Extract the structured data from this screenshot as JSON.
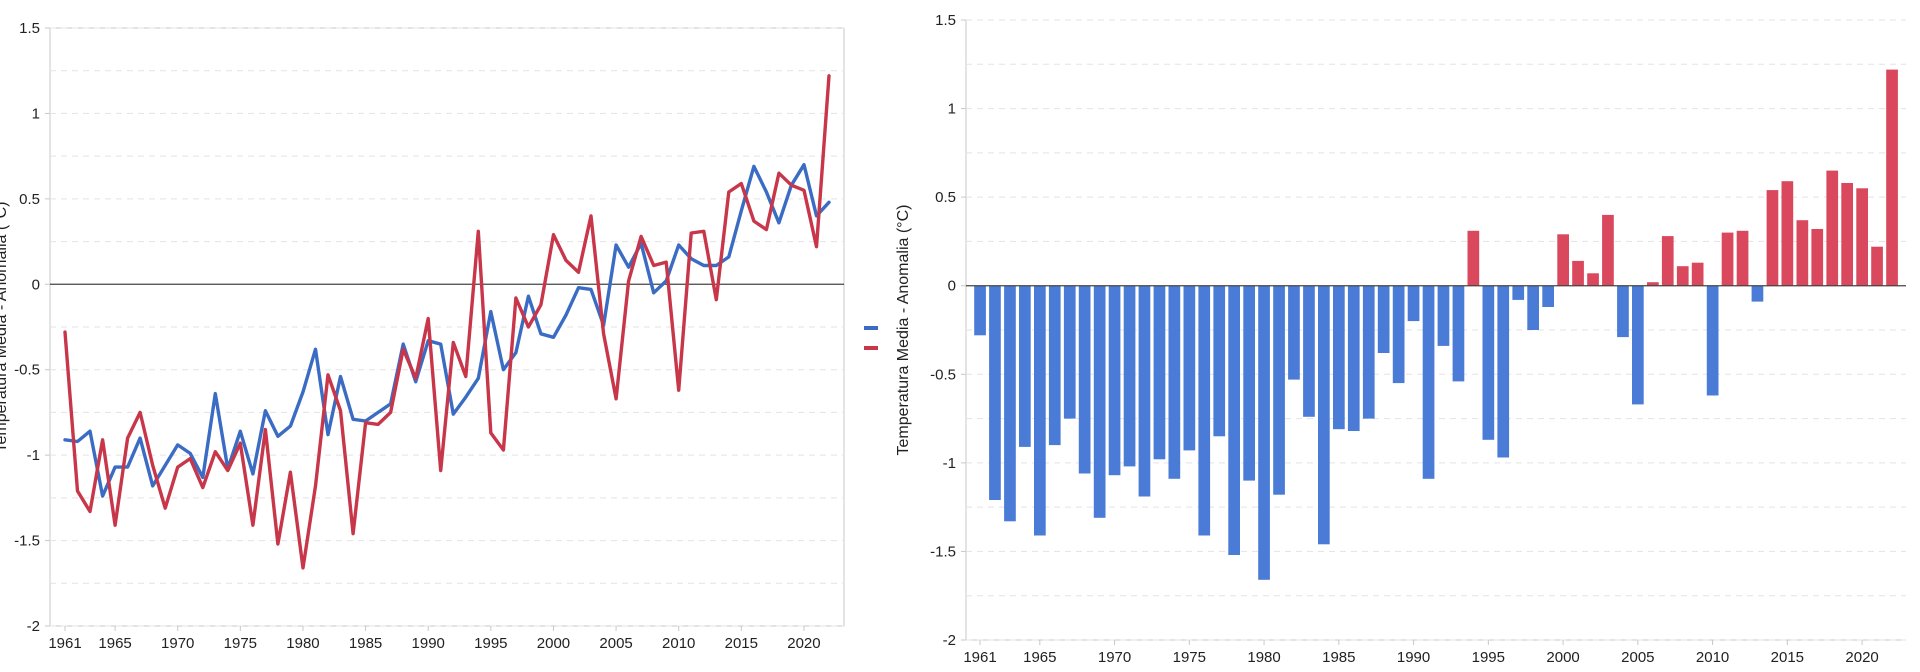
{
  "chart_data": [
    {
      "type": "line",
      "ylabel": "Temperatura Media - Anomalia (°C)",
      "ylim": [
        -2,
        1.5
      ],
      "yticks": [
        "-2",
        "-1.5",
        "-1",
        "-0.5",
        "0",
        "0.5",
        "1",
        "1.5"
      ],
      "xticks": [
        "1961",
        "1965",
        "1970",
        "1975",
        "1980",
        "1985",
        "1990",
        "1995",
        "2000",
        "2005",
        "2010",
        "2015",
        "2020"
      ],
      "x": [
        1961,
        1962,
        1963,
        1964,
        1965,
        1966,
        1967,
        1968,
        1969,
        1970,
        1971,
        1972,
        1973,
        1974,
        1975,
        1976,
        1977,
        1978,
        1979,
        1980,
        1981,
        1982,
        1983,
        1984,
        1985,
        1986,
        1987,
        1988,
        1989,
        1990,
        1991,
        1992,
        1993,
        1994,
        1995,
        1996,
        1997,
        1998,
        1999,
        2000,
        2001,
        2002,
        2003,
        2004,
        2005,
        2006,
        2007,
        2008,
        2009,
        2010,
        2011,
        2012,
        2013,
        2014,
        2015,
        2016,
        2017,
        2018,
        2019,
        2020,
        2021,
        2022
      ],
      "grid": true,
      "series": [
        {
          "color": "#3b6cc4",
          "values": [
            -0.91,
            -0.92,
            -0.86,
            -1.24,
            -1.07,
            -1.07,
            -0.9,
            -1.18,
            -1.06,
            -0.94,
            -0.99,
            -1.13,
            -0.64,
            -1.08,
            -0.86,
            -1.11,
            -0.74,
            -0.89,
            -0.83,
            -0.63,
            -0.38,
            -0.88,
            -0.54,
            -0.79,
            -0.8,
            -0.75,
            -0.7,
            -0.35,
            -0.57,
            -0.33,
            -0.35,
            -0.76,
            -0.66,
            -0.55,
            -0.16,
            -0.5,
            -0.4,
            -0.07,
            -0.29,
            -0.31,
            -0.18,
            -0.02,
            -0.03,
            -0.24,
            0.23,
            0.1,
            0.24,
            -0.05,
            0.02,
            0.23,
            0.15,
            0.11,
            0.11,
            0.16,
            0.43,
            0.69,
            0.54,
            0.36,
            0.58,
            0.7,
            0.4,
            0.48
          ]
        },
        {
          "color": "#c8364a",
          "values": [
            -0.28,
            -1.21,
            -1.33,
            -0.91,
            -1.41,
            -0.9,
            -0.75,
            -1.06,
            -1.31,
            -1.07,
            -1.02,
            -1.19,
            -0.98,
            -1.09,
            -0.93,
            -1.41,
            -0.85,
            -1.52,
            -1.1,
            -1.66,
            -1.18,
            -0.53,
            -0.74,
            -1.46,
            -0.81,
            -0.82,
            -0.75,
            -0.38,
            -0.55,
            -0.2,
            -1.09,
            -0.34,
            -0.54,
            0.31,
            -0.87,
            -0.97,
            -0.08,
            -0.25,
            -0.12,
            0.29,
            0.14,
            0.07,
            0.4,
            -0.29,
            -0.67,
            0.02,
            0.28,
            0.11,
            0.13,
            -0.62,
            0.3,
            0.31,
            -0.09,
            0.54,
            0.59,
            0.37,
            0.32,
            0.65,
            0.58,
            0.55,
            0.22,
            1.22
          ]
        }
      ]
    },
    {
      "type": "bar",
      "ylabel": "Temperatura Media - Anomalia (°C)",
      "ylim": [
        -2,
        1.5
      ],
      "yticks": [
        "-2",
        "-1.5",
        "-1",
        "-0.5",
        "0",
        "0.5",
        "1",
        "1.5"
      ],
      "xticks": [
        "1961",
        "1965",
        "1970",
        "1975",
        "1980",
        "1985",
        "1990",
        "1995",
        "2000",
        "2005",
        "2010",
        "2015",
        "2020"
      ],
      "x": [
        1961,
        1962,
        1963,
        1964,
        1965,
        1966,
        1967,
        1968,
        1969,
        1970,
        1971,
        1972,
        1973,
        1974,
        1975,
        1976,
        1977,
        1978,
        1979,
        1980,
        1981,
        1982,
        1983,
        1984,
        1985,
        1986,
        1987,
        1988,
        1989,
        1990,
        1991,
        1992,
        1993,
        1994,
        1995,
        1996,
        1997,
        1998,
        1999,
        2000,
        2001,
        2002,
        2003,
        2004,
        2005,
        2006,
        2007,
        2008,
        2009,
        2010,
        2011,
        2012,
        2013,
        2014,
        2015,
        2016,
        2017,
        2018,
        2019,
        2020,
        2021,
        2022
      ],
      "values": [
        -0.28,
        -1.21,
        -1.33,
        -0.91,
        -1.41,
        -0.9,
        -0.75,
        -1.06,
        -1.31,
        -1.07,
        -1.02,
        -1.19,
        -0.98,
        -1.09,
        -0.93,
        -1.41,
        -0.85,
        -1.52,
        -1.1,
        -1.66,
        -1.18,
        -0.53,
        -0.74,
        -1.46,
        -0.81,
        -0.82,
        -0.75,
        -0.38,
        -0.55,
        -0.2,
        -1.09,
        -0.34,
        -0.54,
        0.31,
        -0.87,
        -0.97,
        -0.08,
        -0.25,
        -0.12,
        0.29,
        0.14,
        0.07,
        0.4,
        -0.29,
        -0.67,
        0.02,
        0.28,
        0.11,
        0.13,
        -0.62,
        0.3,
        0.31,
        -0.09,
        0.54,
        0.59,
        0.37,
        0.32,
        0.65,
        0.58,
        0.55,
        0.22,
        1.22
      ],
      "positive_color": "#d9485c",
      "negative_color": "#4a7bd6",
      "grid": true
    }
  ],
  "legend_swatches": [
    {
      "color": "#3b6cc4"
    },
    {
      "color": "#c8364a"
    }
  ]
}
